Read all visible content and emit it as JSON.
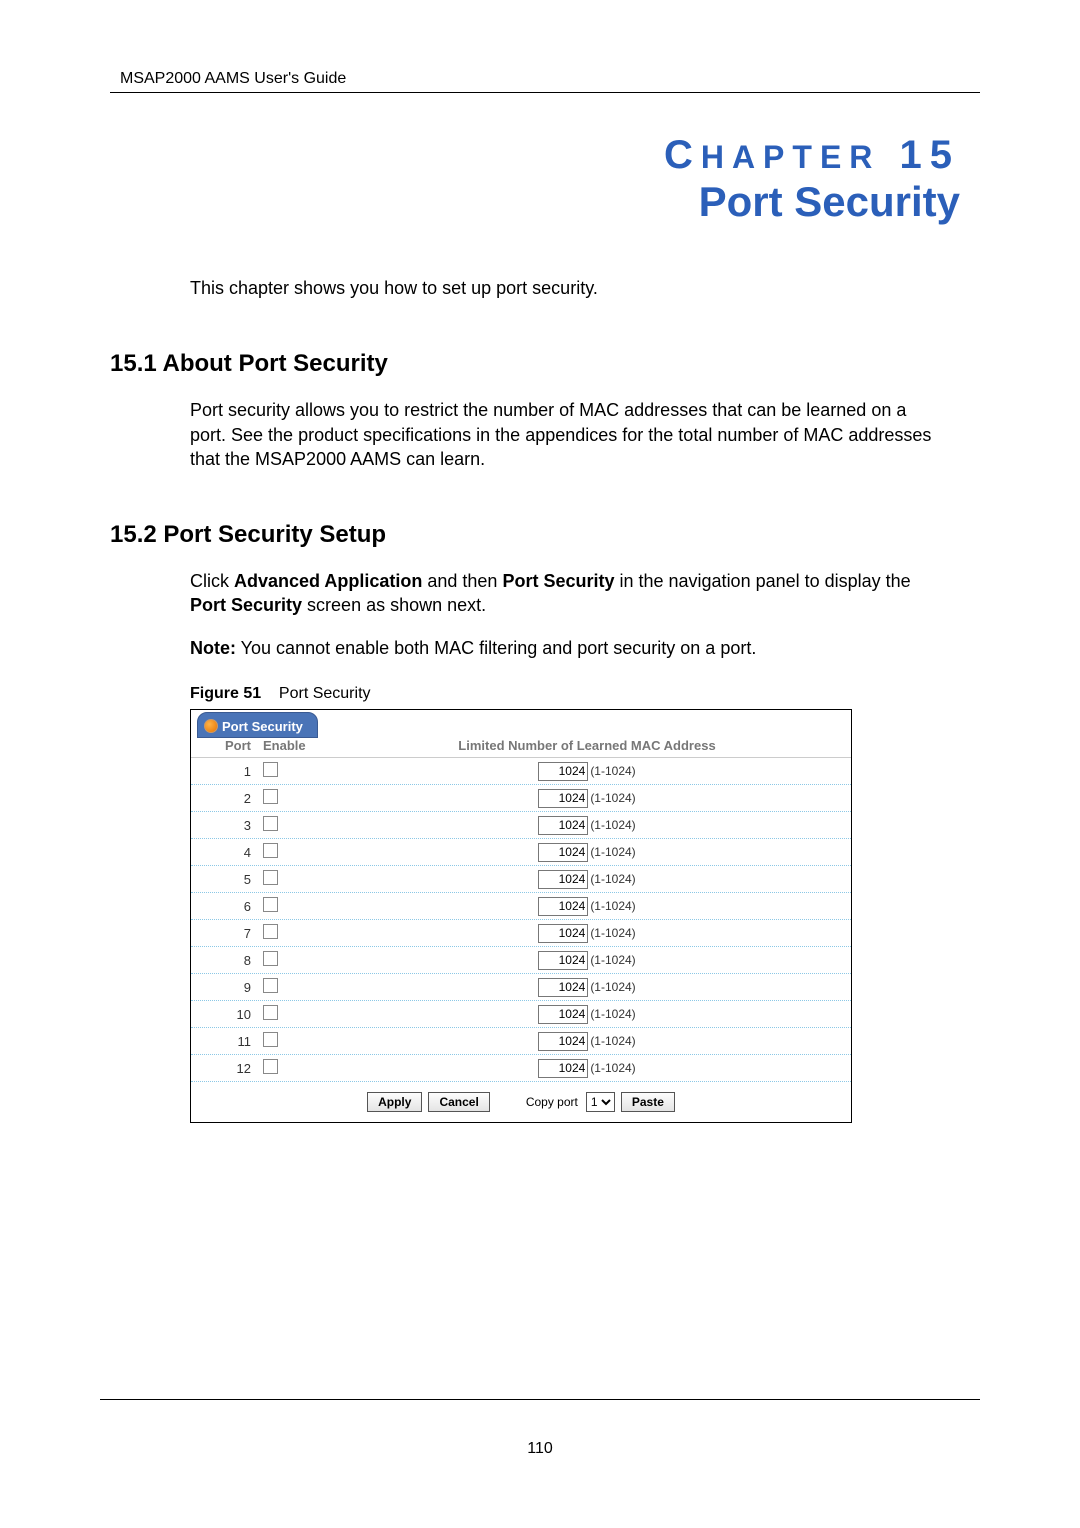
{
  "header": "MSAP2000 AAMS User's Guide",
  "chapter": {
    "label": "CHAPTER 15",
    "title": "Port Security"
  },
  "intro": "This chapter shows you how to set up port security.",
  "section1": {
    "heading": "15.1  About Port Security",
    "text": "Port security allows you to restrict the number of MAC addresses that can be learned on a port. See the product specifications in the appendices for the total number of MAC addresses that the MSAP2000 AAMS can learn."
  },
  "section2": {
    "heading": "15.2  Port Security Setup",
    "para1_a": "Click ",
    "para1_b": "Advanced Application",
    "para1_c": " and then ",
    "para1_d": "Port Security",
    "para1_e": " in the navigation panel to display the",
    "para2_a": "Port Security",
    "para2_b": " screen as shown next.",
    "note_a": "Note:",
    "note_b": " You cannot enable both MAC filtering and port security on a port."
  },
  "figure": {
    "label": "Figure 51",
    "caption": "Port Security"
  },
  "screenshot": {
    "tab_title": "Port Security",
    "columns": {
      "port": "Port",
      "enable": "Enable",
      "mac": "Limited Number of Learned MAC Address"
    },
    "mac_value": "1024",
    "mac_range": "(1-1024)",
    "rows": [
      {
        "port": "1"
      },
      {
        "port": "2"
      },
      {
        "port": "3"
      },
      {
        "port": "4"
      },
      {
        "port": "5"
      },
      {
        "port": "6"
      },
      {
        "port": "7"
      },
      {
        "port": "8"
      },
      {
        "port": "9"
      },
      {
        "port": "10"
      },
      {
        "port": "11"
      },
      {
        "port": "12"
      }
    ],
    "buttons": {
      "apply": "Apply",
      "cancel": "Cancel",
      "paste": "Paste"
    },
    "copy_label": "Copy port",
    "copy_value": "1"
  },
  "page_number": "110"
}
